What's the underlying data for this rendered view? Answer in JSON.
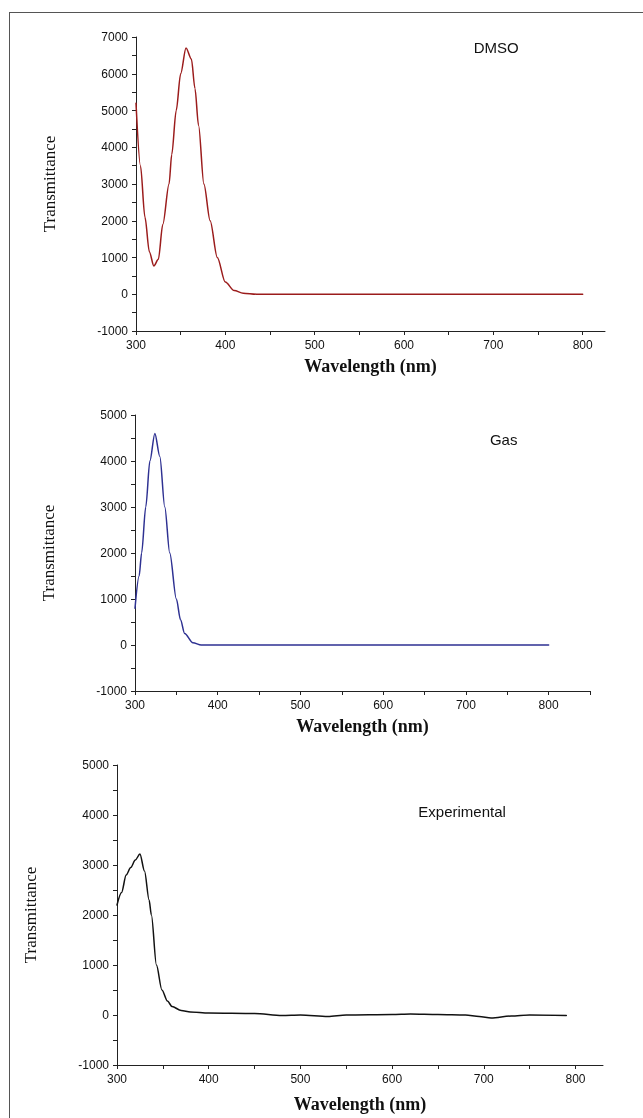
{
  "chart_data": [
    {
      "type": "line",
      "xlabel": "Wavelength (nm)",
      "ylabel": "Transmittance",
      "annotations": [
        "DMSO"
      ],
      "grid": false,
      "marker": "none",
      "line_style": "solid",
      "xlim": [
        300,
        825
      ],
      "xticks": [
        300,
        {
          "value": 350,
          "label": null
        },
        400,
        {
          "value": 450,
          "label": null
        },
        500,
        {
          "value": 550,
          "label": null
        },
        600,
        {
          "value": 650,
          "label": null
        },
        700,
        {
          "value": 750,
          "label": null
        },
        800
      ],
      "ylim": [
        -1000,
        7000
      ],
      "yticks": [
        -1000,
        {
          "value": -500,
          "label": null
        },
        0,
        {
          "value": 500,
          "label": null
        },
        1000,
        {
          "value": 1500,
          "label": null
        },
        2000,
        {
          "value": 2500,
          "label": null
        },
        3000,
        {
          "value": 3500,
          "label": null
        },
        4000,
        {
          "value": 4500,
          "label": null
        },
        5000,
        {
          "value": 5500,
          "label": null
        },
        6000,
        {
          "value": 6500,
          "label": null
        },
        7000
      ],
      "series": [
        {
          "color": "#9b1c1c",
          "x": [
            300,
            305,
            310,
            315,
            320,
            325,
            330,
            337,
            340,
            345,
            350,
            356,
            362,
            366,
            370,
            376,
            383,
            391,
            400,
            410,
            420,
            435,
            500,
            600,
            700,
            800
          ],
          "values": [
            5200,
            3500,
            2100,
            1150,
            770,
            950,
            1900,
            3000,
            3800,
            5000,
            6000,
            6700,
            6400,
            5600,
            4600,
            3000,
            2000,
            1000,
            330,
            100,
            30,
            0,
            0,
            0,
            0,
            0
          ]
        }
      ]
    },
    {
      "type": "line",
      "xlabel": "Wavelength (nm)",
      "ylabel": "Transmittance",
      "annotations": [
        "Gas"
      ],
      "grid": false,
      "marker": "none",
      "line_style": "solid",
      "xlim": [
        300,
        850
      ],
      "xticks": [
        300,
        {
          "value": 350,
          "label": null
        },
        400,
        {
          "value": 450,
          "label": null
        },
        500,
        {
          "value": 550,
          "label": null
        },
        600,
        {
          "value": 650,
          "label": null
        },
        700,
        {
          "value": 750,
          "label": null
        },
        800,
        {
          "value": 850,
          "label": null
        }
      ],
      "ylim": [
        -1000,
        5000
      ],
      "yticks": [
        -1000,
        {
          "value": -500,
          "label": null
        },
        0,
        {
          "value": 500,
          "label": null
        },
        1000,
        {
          "value": 1500,
          "label": null
        },
        2000,
        {
          "value": 2500,
          "label": null
        },
        3000,
        {
          "value": 3500,
          "label": null
        },
        4000,
        {
          "value": 4500,
          "label": null
        },
        5000
      ],
      "series": [
        {
          "color": "#2e3192",
          "x": [
            300,
            305,
            308,
            313,
            318,
            324,
            330,
            336,
            342,
            350,
            355,
            360,
            370,
            380,
            390,
            500,
            600,
            700,
            800
          ],
          "values": [
            800,
            1500,
            2000,
            3000,
            4000,
            4600,
            4100,
            3000,
            2000,
            1000,
            550,
            250,
            50,
            0,
            0,
            0,
            0,
            0,
            0
          ]
        }
      ]
    },
    {
      "type": "line",
      "xlabel": "Wavelength (nm)",
      "ylabel": "Transmittance",
      "annotations": [
        "Experimental"
      ],
      "grid": false,
      "marker": "none",
      "line_style": "solid",
      "xlim": [
        300,
        830
      ],
      "xticks": [
        300,
        {
          "value": 350,
          "label": null
        },
        400,
        {
          "value": 450,
          "label": null
        },
        500,
        {
          "value": 550,
          "label": null
        },
        600,
        {
          "value": 650,
          "label": null
        },
        700,
        {
          "value": 750,
          "label": null
        },
        800
      ],
      "ylim": [
        -1000,
        5000
      ],
      "yticks": [
        -1000,
        {
          "value": -500,
          "label": null
        },
        0,
        {
          "value": 500,
          "label": null
        },
        1000,
        {
          "value": 1500,
          "label": null
        },
        2000,
        {
          "value": 2500,
          "label": null
        },
        3000,
        {
          "value": 3500,
          "label": null
        },
        4000,
        {
          "value": 4500,
          "label": null
        },
        5000
      ],
      "series": [
        {
          "color": "#111111",
          "x": [
            300,
            305,
            310,
            315,
            320,
            325,
            330,
            335,
            337.5,
            343,
            349,
            355,
            360,
            370,
            380,
            400,
            450,
            480,
            500,
            530,
            550,
            600,
            620,
            650,
            680,
            695,
            708,
            730,
            750,
            790
          ],
          "values": [
            2200,
            2450,
            2800,
            2950,
            3100,
            3220,
            2880,
            2300,
            2000,
            1000,
            500,
            280,
            170,
            90,
            60,
            40,
            30,
            -10,
            0,
            -30,
            0,
            10,
            20,
            10,
            0,
            -30,
            -60,
            -20,
            0,
            -10
          ]
        }
      ]
    }
  ]
}
